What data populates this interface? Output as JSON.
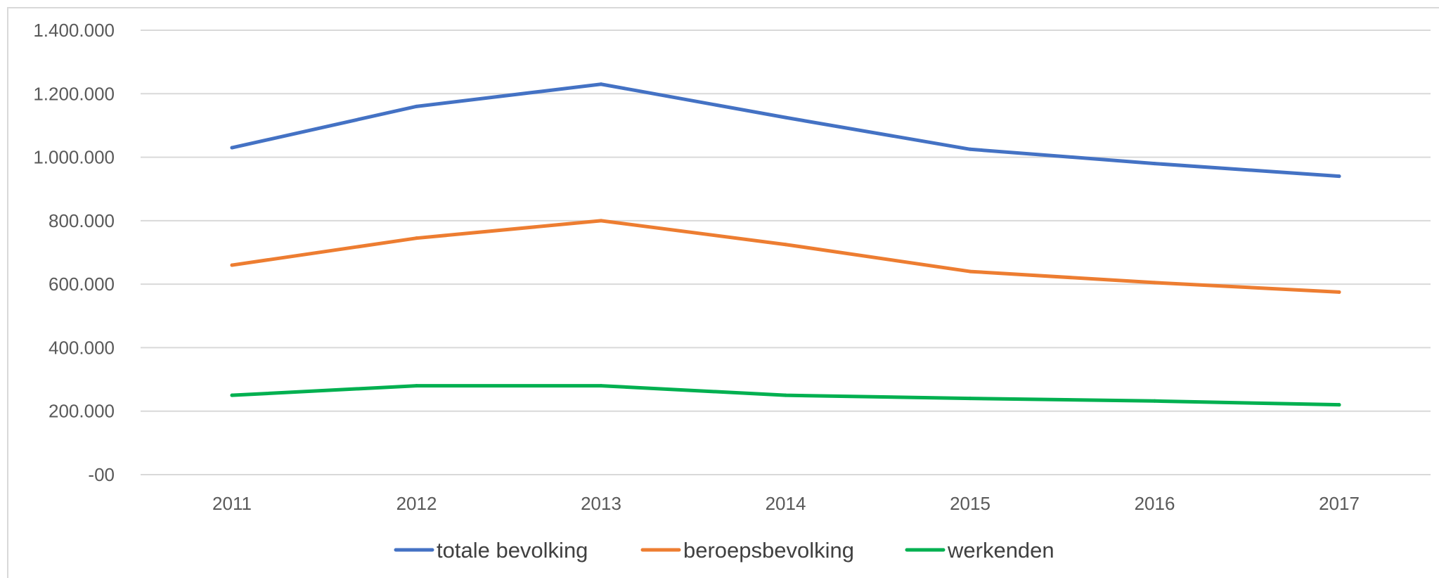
{
  "chart_data": {
    "type": "line",
    "title": "",
    "xlabel": "",
    "ylabel": "",
    "categories": [
      "2011",
      "2012",
      "2013",
      "2014",
      "2015",
      "2016",
      "2017"
    ],
    "ylim": [
      0,
      1400000
    ],
    "y_ticks": [
      0,
      200000,
      400000,
      600000,
      800000,
      1000000,
      1200000,
      1400000
    ],
    "y_tick_labels": [
      "-00",
      "200.000",
      "400.000",
      "600.000",
      "800.000",
      "1.000.000",
      "1.200.000",
      "1.400.000"
    ],
    "grid": true,
    "legend_position": "bottom",
    "series": [
      {
        "name": "totale bevolking",
        "color": "#4472C4",
        "values": [
          1030000,
          1160000,
          1230000,
          1125000,
          1025000,
          980000,
          940000
        ]
      },
      {
        "name": "beroepsbevolking",
        "color": "#ED7D31",
        "values": [
          660000,
          745000,
          800000,
          725000,
          640000,
          605000,
          575000
        ]
      },
      {
        "name": "werkenden",
        "color": "#00B050",
        "values": [
          250000,
          280000,
          280000,
          250000,
          240000,
          232000,
          220000
        ]
      }
    ]
  }
}
